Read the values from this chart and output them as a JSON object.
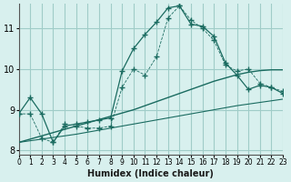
{
  "xlabel": "Humidex (Indice chaleur)",
  "ylabel": "",
  "xlim": [
    0,
    23
  ],
  "ylim": [
    7.9,
    11.6
  ],
  "yticks": [
    8,
    9,
    10,
    11
  ],
  "xticks": [
    0,
    1,
    2,
    3,
    4,
    5,
    6,
    7,
    8,
    9,
    10,
    11,
    12,
    13,
    14,
    15,
    16,
    17,
    18,
    19,
    20,
    21,
    22,
    23
  ],
  "bg_color": "#d8f0ee",
  "grid_color": "#a0ccc8",
  "line_color": "#1a6b60",
  "hours": [
    0,
    1,
    2,
    3,
    4,
    5,
    6,
    7,
    8,
    9,
    10,
    11,
    12,
    13,
    14,
    15,
    16,
    17,
    18,
    19,
    20,
    21,
    22,
    23
  ],
  "series1": [
    8.9,
    9.3,
    8.9,
    8.2,
    8.6,
    8.65,
    8.7,
    8.75,
    8.8,
    9.95,
    10.5,
    10.85,
    11.15,
    11.5,
    11.55,
    11.1,
    11.05,
    10.8,
    10.15,
    9.85,
    9.5,
    9.6,
    9.55,
    9.4
  ],
  "series2": [
    8.9,
    8.9,
    8.3,
    8.2,
    8.65,
    8.6,
    8.55,
    8.55,
    8.6,
    9.55,
    10.0,
    9.85,
    10.3,
    11.25,
    11.55,
    11.2,
    11.0,
    10.7,
    10.1,
    9.95,
    10.0,
    9.65,
    9.55,
    9.45
  ],
  "trend1": [
    8.2,
    8.28,
    8.36,
    8.44,
    8.52,
    8.6,
    8.68,
    8.76,
    8.84,
    8.92,
    9.0,
    9.1,
    9.2,
    9.3,
    9.4,
    9.5,
    9.6,
    9.7,
    9.78,
    9.86,
    9.92,
    9.96,
    9.98,
    9.98
  ],
  "trend2": [
    8.2,
    8.24,
    8.28,
    8.32,
    8.36,
    8.4,
    8.45,
    8.5,
    8.55,
    8.6,
    8.65,
    8.7,
    8.75,
    8.8,
    8.85,
    8.9,
    8.95,
    9.0,
    9.05,
    9.1,
    9.14,
    9.18,
    9.22,
    9.26
  ]
}
